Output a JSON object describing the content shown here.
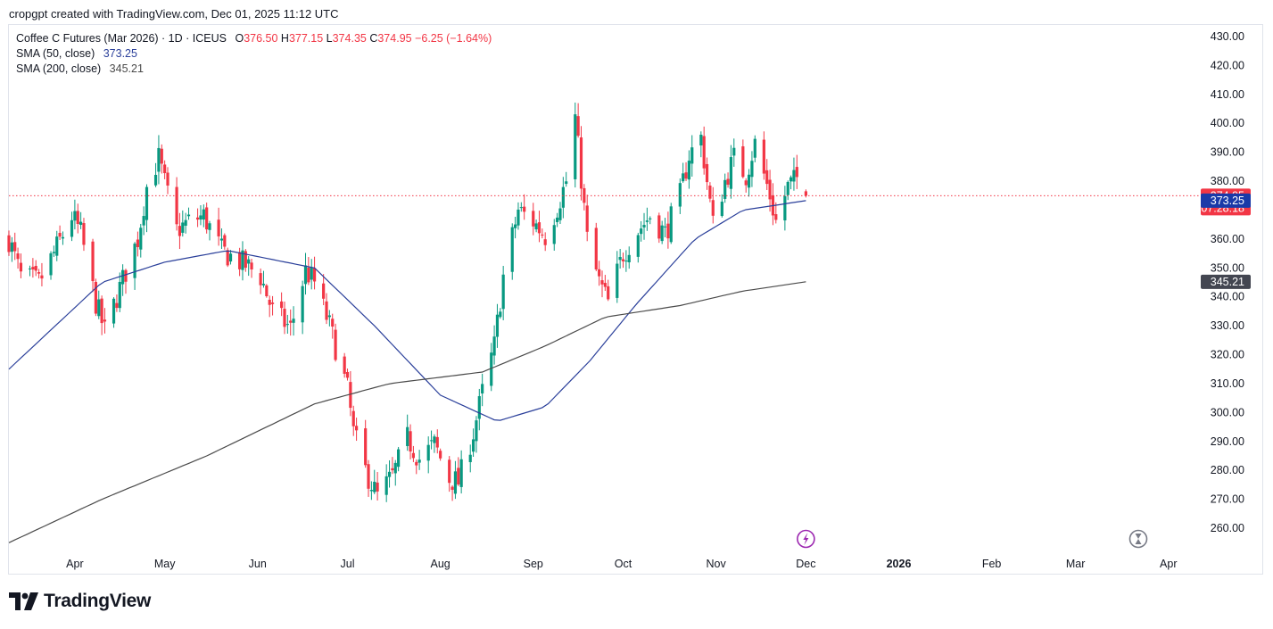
{
  "header": {
    "attribution": "cropgpt created with TradingView.com, Dec 01, 2025 11:12 UTC"
  },
  "legend": {
    "symbol": "Coffee C Futures (Mar 2026) · 1D · ICEUS",
    "open_label": "O",
    "open": "376.50",
    "high_label": "H",
    "high": "377.15",
    "low_label": "L",
    "low": "374.35",
    "close_label": "C",
    "close": "374.95",
    "change": "−6.25 (−1.64%)",
    "sma50_label": "SMA (50, close)",
    "sma50_value": "373.25",
    "sma200_label": "SMA (200, close)",
    "sma200_value": "345.21"
  },
  "price_tags": {
    "last_price": "374.95",
    "countdown": "07:28:18",
    "sma50": "373.25",
    "sma200": "345.21"
  },
  "logo": {
    "text": "TradingView"
  },
  "colors": {
    "up": "#089981",
    "down": "#f23645",
    "sma50": "#2a3f9a",
    "sma200": "#4a4a4a",
    "last_price_tag": "#f23645",
    "sma50_tag": "#1a3aa8",
    "sma200_tag": "#434651",
    "event_icon": "#9c27b0"
  },
  "chart_data": {
    "type": "candlestick",
    "ylim": [
      252,
      434
    ],
    "y_ticks": [
      "260.00",
      "270.00",
      "280.00",
      "290.00",
      "300.00",
      "310.00",
      "320.00",
      "330.00",
      "340.00",
      "350.00",
      "360.00",
      "370.00",
      "380.00",
      "390.00",
      "400.00",
      "410.00",
      "420.00",
      "430.00"
    ],
    "x_ticks": [
      "Apr",
      "May",
      "Jun",
      "Jul",
      "Aug",
      "Sep",
      "Oct",
      "Nov",
      "Dec",
      "2026",
      "Feb",
      "Mar",
      "Apr"
    ],
    "x_tick_bold": [
      "2026"
    ],
    "price_anchors": [
      [
        "2025-03-10",
        360
      ],
      [
        "2025-03-14",
        347
      ],
      [
        "2025-03-20",
        345
      ],
      [
        "2025-03-25",
        355
      ],
      [
        "2025-03-31",
        368
      ],
      [
        "2025-04-03",
        362
      ],
      [
        "2025-04-08",
        338
      ],
      [
        "2025-04-11",
        328
      ],
      [
        "2025-04-16",
        343
      ],
      [
        "2025-04-22",
        360
      ],
      [
        "2025-04-25",
        378
      ],
      [
        "2025-04-29",
        388
      ],
      [
        "2025-05-02",
        375
      ],
      [
        "2025-05-05",
        363
      ],
      [
        "2025-05-09",
        366
      ],
      [
        "2025-05-14",
        368
      ],
      [
        "2025-05-20",
        356
      ],
      [
        "2025-05-23",
        354
      ],
      [
        "2025-05-28",
        351
      ],
      [
        "2025-06-02",
        347
      ],
      [
        "2025-06-06",
        335
      ],
      [
        "2025-06-12",
        329
      ],
      [
        "2025-06-17",
        349
      ],
      [
        "2025-06-20",
        345
      ],
      [
        "2025-06-25",
        330
      ],
      [
        "2025-07-01",
        308
      ],
      [
        "2025-07-03",
        293
      ],
      [
        "2025-07-07",
        280
      ],
      [
        "2025-07-11",
        271
      ],
      [
        "2025-07-16",
        278
      ],
      [
        "2025-07-21",
        291
      ],
      [
        "2025-07-25",
        284
      ],
      [
        "2025-07-30",
        289
      ],
      [
        "2025-08-04",
        277
      ],
      [
        "2025-08-07",
        276
      ],
      [
        "2025-08-12",
        293
      ],
      [
        "2025-08-15",
        307
      ],
      [
        "2025-08-19",
        323
      ],
      [
        "2025-08-22",
        347
      ],
      [
        "2025-08-27",
        370
      ],
      [
        "2025-09-01",
        366
      ],
      [
        "2025-09-05",
        361
      ],
      [
        "2025-09-09",
        371
      ],
      [
        "2025-09-12",
        380
      ],
      [
        "2025-09-15",
        402
      ],
      [
        "2025-09-19",
        360
      ],
      [
        "2025-09-23",
        345
      ],
      [
        "2025-09-26",
        338
      ],
      [
        "2025-10-01",
        355
      ],
      [
        "2025-10-06",
        363
      ],
      [
        "2025-10-10",
        368
      ],
      [
        "2025-10-15",
        362
      ],
      [
        "2025-10-20",
        375
      ],
      [
        "2025-10-23",
        389
      ],
      [
        "2025-10-27",
        395
      ],
      [
        "2025-10-31",
        365
      ],
      [
        "2025-11-04",
        380
      ],
      [
        "2025-11-07",
        388
      ],
      [
        "2025-11-11",
        382
      ],
      [
        "2025-11-14",
        393
      ],
      [
        "2025-11-19",
        375
      ],
      [
        "2025-11-21",
        366
      ],
      [
        "2025-11-25",
        378
      ],
      [
        "2025-11-28",
        381
      ],
      [
        "2025-12-01",
        374.95
      ]
    ],
    "series": [
      {
        "name": "SMA (50, close)",
        "last": 373.25,
        "anchors": [
          [
            "2025-03-10",
            315
          ],
          [
            "2025-04-10",
            345
          ],
          [
            "2025-05-01",
            352
          ],
          [
            "2025-05-22",
            356
          ],
          [
            "2025-06-20",
            350
          ],
          [
            "2025-07-10",
            330
          ],
          [
            "2025-08-01",
            306
          ],
          [
            "2025-08-20",
            297
          ],
          [
            "2025-09-05",
            302
          ],
          [
            "2025-09-20",
            318
          ],
          [
            "2025-10-05",
            337
          ],
          [
            "2025-10-25",
            360
          ],
          [
            "2025-11-10",
            370
          ],
          [
            "2025-12-01",
            373.25
          ]
        ]
      },
      {
        "name": "SMA (200, close)",
        "last": 345.21,
        "anchors": [
          [
            "2025-03-10",
            255
          ],
          [
            "2025-04-10",
            270
          ],
          [
            "2025-05-15",
            285
          ],
          [
            "2025-06-20",
            303
          ],
          [
            "2025-07-15",
            310
          ],
          [
            "2025-08-15",
            314
          ],
          [
            "2025-09-05",
            323
          ],
          [
            "2025-09-25",
            333
          ],
          [
            "2025-10-20",
            337
          ],
          [
            "2025-11-10",
            342
          ],
          [
            "2025-12-01",
            345.21
          ]
        ]
      }
    ]
  }
}
